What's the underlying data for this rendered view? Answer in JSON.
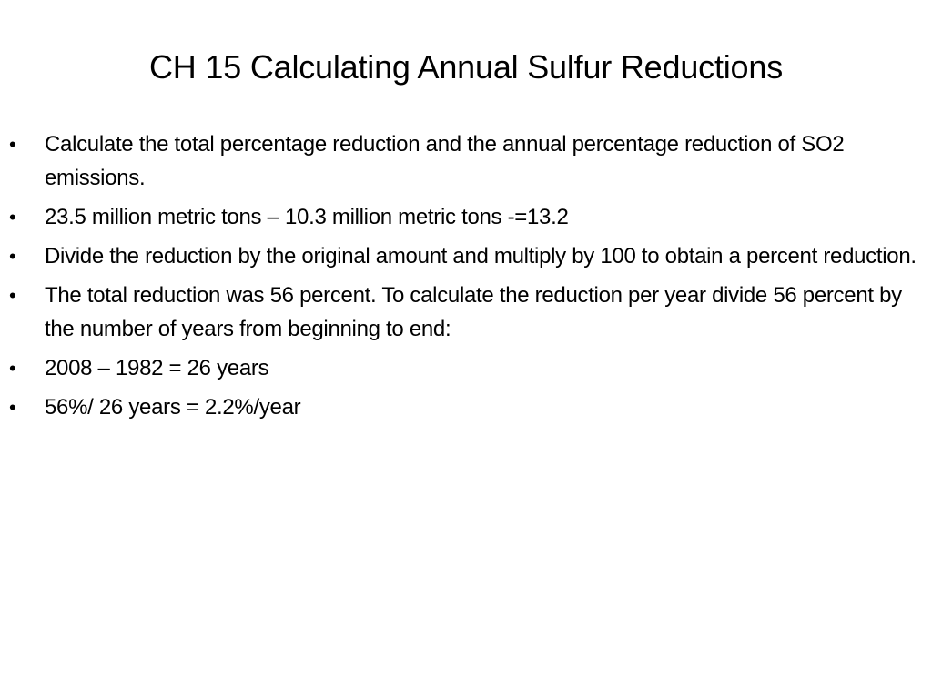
{
  "slide": {
    "title": "CH 15 Calculating Annual Sulfur Reductions",
    "bullet_char": "•",
    "bullets": [
      "Calculate the total percentage reduction and the annual percentage reduction of SO2 emissions.",
      "23.5 million metric tons – 10.3 million metric tons -=13.2",
      "Divide the reduction by the original amount and multiply by 100 to obtain a percent reduction.",
      "The total reduction was 56 percent. To calculate the reduction per year divide 56 percent by the number of years from beginning to end:",
      "2008 – 1982 = 26 years",
      "56%/ 26 years = 2.2%/year"
    ]
  }
}
